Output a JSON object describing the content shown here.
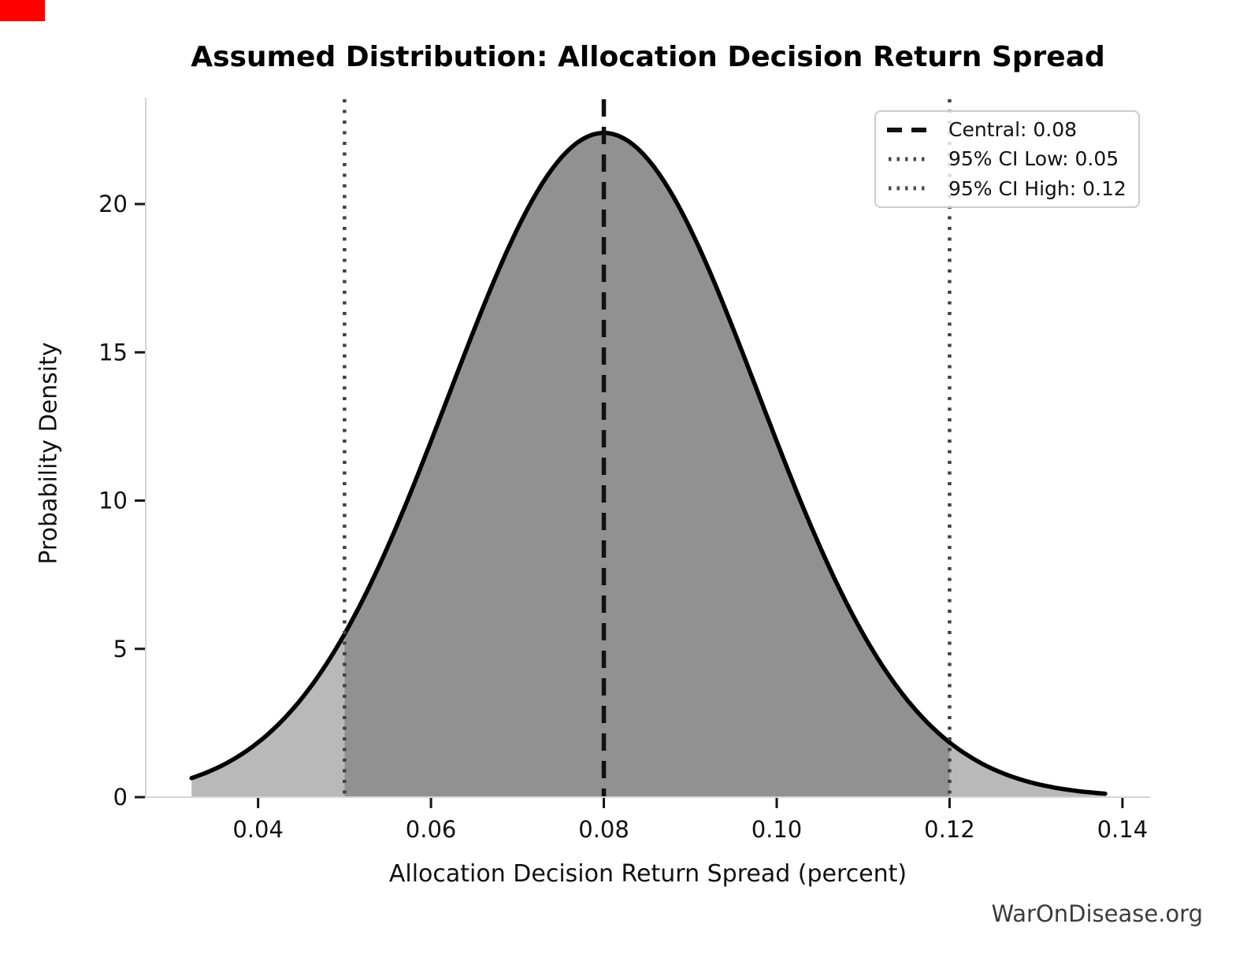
{
  "page": {
    "background": "#ffffff",
    "corner_marker_color": "#ff0000"
  },
  "title": "Assumed Distribution: Allocation Decision Return Spread",
  "watermark": "WarOnDisease.org",
  "legend": {
    "entries": [
      {
        "label": "Central: 0.08",
        "style": "dashed",
        "color": "#111111"
      },
      {
        "label": "95% CI Low: 0.05",
        "style": "dotted",
        "color": "#4a4a4a"
      },
      {
        "label": "95% CI High: 0.12",
        "style": "dotted",
        "color": "#4a4a4a"
      }
    ]
  },
  "chart_data": {
    "type": "area",
    "title": "Assumed Distribution: Allocation Decision Return Spread",
    "xlabel": "Allocation Decision Return Spread (percent)",
    "ylabel": "Probability Density",
    "xlim": [
      0.027,
      0.1432
    ],
    "ylim": [
      0,
      23.56
    ],
    "xticks": [
      0.04,
      0.06,
      0.08,
      0.1,
      0.12,
      0.14
    ],
    "xtick_labels": [
      "0.04",
      "0.06",
      "0.08",
      "0.10",
      "0.12",
      "0.14"
    ],
    "yticks": [
      0,
      5,
      10,
      15,
      20
    ],
    "ytick_labels": [
      "0",
      "5",
      "10",
      "15",
      "20"
    ],
    "grid": false,
    "legend_position": "upper right",
    "distribution": {
      "type": "normal",
      "mean": 0.08,
      "sd": 0.0179,
      "peak_density": 22.4,
      "x_start": 0.0323,
      "x_end": 0.138
    },
    "vlines": [
      {
        "x": 0.08,
        "style": "dashed",
        "color": "#111111",
        "label": "Central: 0.08"
      },
      {
        "x": 0.05,
        "style": "dotted",
        "color": "#404040",
        "label": "95% CI Low: 0.05"
      },
      {
        "x": 0.12,
        "style": "dotted",
        "color": "#404040",
        "label": "95% CI High: 0.12"
      }
    ],
    "fills": {
      "outer_color": "#b9b9b9",
      "inner_color": "#919191",
      "inner_range": [
        0.05,
        0.12
      ]
    },
    "curve_color": "#000000",
    "spine_color": "#d5d5d5",
    "tick_color": "#161616",
    "tick_label_color": "#111111"
  }
}
